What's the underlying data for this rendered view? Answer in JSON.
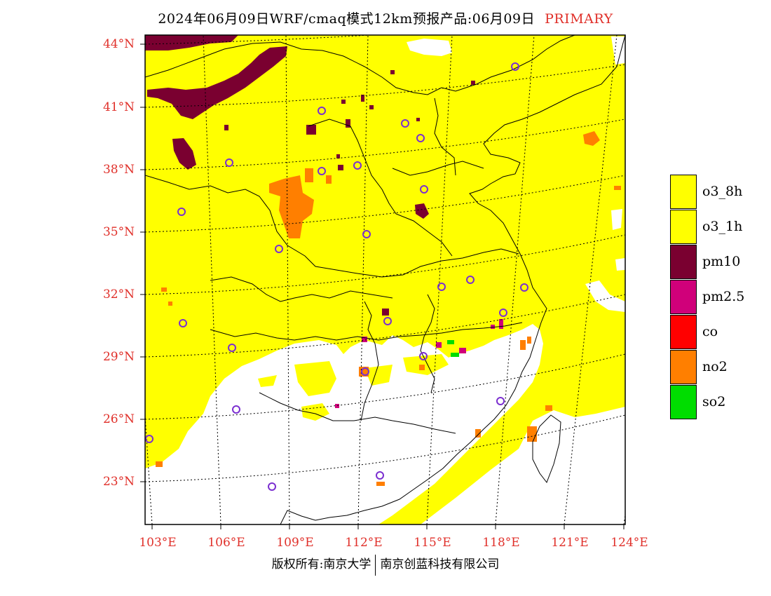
{
  "title": {
    "text": "2024年06月09日WRF/cmaq模式12km预报产品:06月09日",
    "tag": "PRIMARY"
  },
  "lat_labels": [
    "44°N",
    "41°N",
    "38°N",
    "35°N",
    "32°N",
    "29°N",
    "26°N",
    "23°N"
  ],
  "lon_labels": [
    "103°E",
    "106°E",
    "109°E",
    "112°E",
    "115°E",
    "118°E",
    "121°E",
    "124°E"
  ],
  "legend": [
    {
      "label": "o3_8h",
      "color": "#ffff00"
    },
    {
      "label": "o3_1h",
      "color": "#ffff00"
    },
    {
      "label": "pm10",
      "color": "#7a0030"
    },
    {
      "label": "pm2.5",
      "color": "#d0007a"
    },
    {
      "label": "co",
      "color": "#ff0000"
    },
    {
      "label": "no2",
      "color": "#ff7f00"
    },
    {
      "label": "so2",
      "color": "#00dd00"
    }
  ],
  "copyright": {
    "left": "版权所有:南京大学",
    "right": "南京创蓝科技有限公司"
  },
  "colors": {
    "text_red": "#e0302a",
    "clean_area": "#ffffff",
    "city_marker": "#7b2fd0"
  }
}
